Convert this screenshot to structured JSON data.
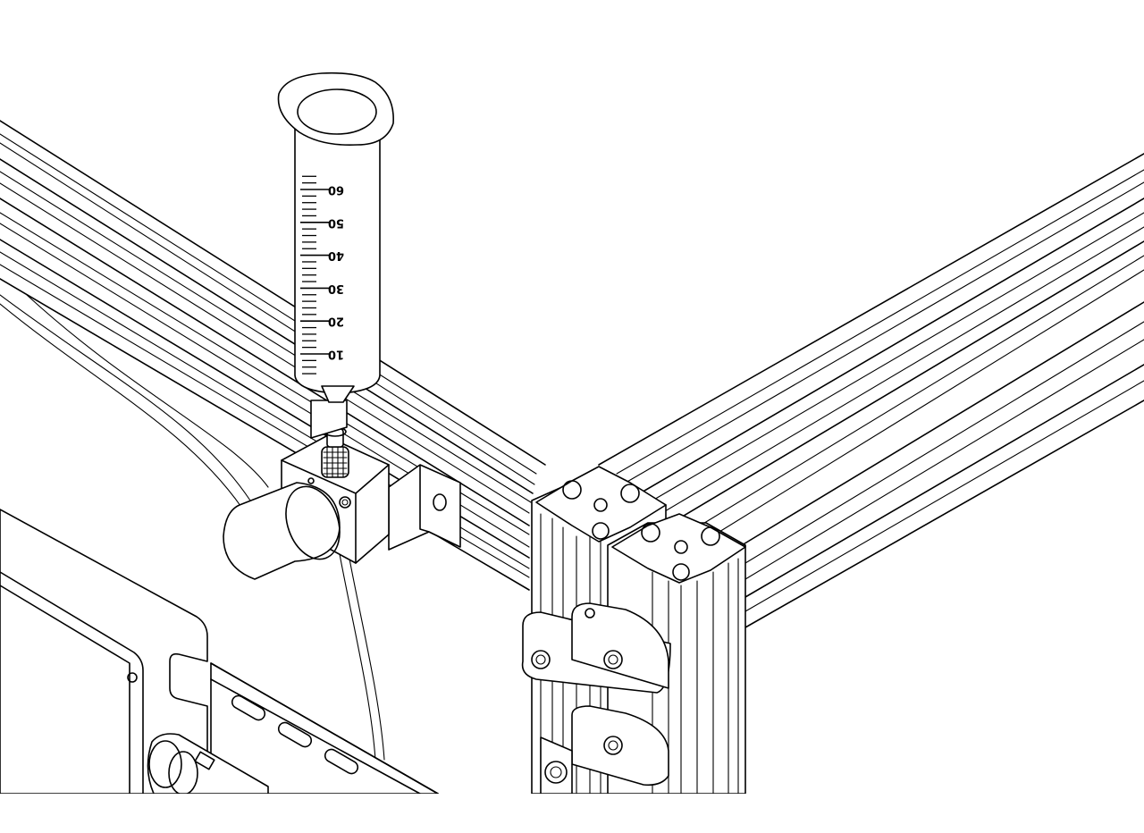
{
  "syringe": {
    "graduations": [
      "60",
      "50",
      "40",
      "30",
      "20",
      "10"
    ]
  }
}
